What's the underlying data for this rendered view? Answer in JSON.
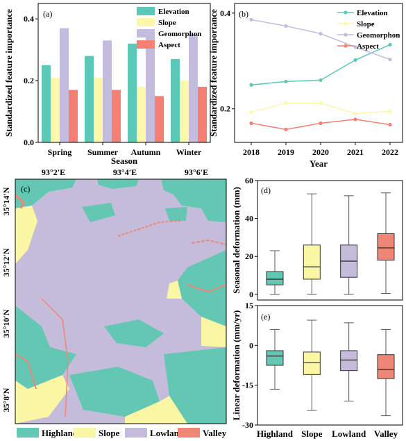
{
  "colors": {
    "elevation": "#5cc9b8",
    "slope": "#fdf7a9",
    "geomorphon": "#c3bcde",
    "aspect": "#f47f72",
    "highland": "#63c7b3",
    "lowland": "#c4bcda",
    "valley": "#ef8575",
    "map_slope": "#faf6a4"
  },
  "chart_data": [
    {
      "panel": "(a)",
      "type": "bar",
      "categories": [
        "Spring",
        "Summer",
        "Autumn",
        "Winter"
      ],
      "series": [
        {
          "name": "Elevation",
          "values": [
            0.25,
            0.28,
            0.32,
            0.27
          ]
        },
        {
          "name": "Slope",
          "values": [
            0.21,
            0.21,
            0.18,
            0.2
          ]
        },
        {
          "name": "Geomorphon",
          "values": [
            0.37,
            0.33,
            0.35,
            0.35
          ]
        },
        {
          "name": "Aspect",
          "values": [
            0.17,
            0.17,
            0.15,
            0.18
          ]
        }
      ],
      "xlabel": "Season",
      "ylabel": "Standardized feature importance",
      "ylim": [
        0,
        0.45
      ],
      "yticks": [
        "0.0",
        "0.2",
        "0.4"
      ],
      "legend": "top-right"
    },
    {
      "panel": "(b)",
      "type": "line",
      "x": [
        "2018",
        "2019",
        "2020",
        "2021",
        "2022"
      ],
      "series": [
        {
          "name": "Elevation",
          "values": [
            0.25,
            0.257,
            0.26,
            0.302,
            0.334
          ]
        },
        {
          "name": "Slope",
          "values": [
            0.193,
            0.212,
            0.212,
            0.19,
            0.195
          ]
        },
        {
          "name": "Geomorphon",
          "values": [
            0.386,
            0.373,
            0.357,
            0.329,
            0.303
          ]
        },
        {
          "name": "Aspect",
          "values": [
            0.17,
            0.157,
            0.17,
            0.178,
            0.167
          ]
        }
      ],
      "xlabel": "Year",
      "ylabel": "Standardized feature importance",
      "ylim": [
        0.13,
        0.42
      ],
      "yticks": [
        "0.2",
        "0.4"
      ],
      "legend": "top-right"
    },
    {
      "panel": "(d)",
      "type": "box",
      "categories": [
        "Highland",
        "Slope",
        "Lowland",
        "Valley"
      ],
      "boxes": [
        {
          "min": 0,
          "q1": 5,
          "median": 8,
          "q3": 12,
          "max": 23
        },
        {
          "min": 0,
          "q1": 8,
          "median": 14.5,
          "q3": 26,
          "max": 53
        },
        {
          "min": 0,
          "q1": 9,
          "median": 17.5,
          "q3": 26,
          "max": 52
        },
        {
          "min": 0.5,
          "q1": 18,
          "median": 24.5,
          "q3": 32,
          "max": 53.5
        }
      ],
      "ylabel": "Seasonal deformation (mm)",
      "ylim": [
        -3,
        60
      ],
      "yticks": [
        "0",
        "20",
        "40",
        "60"
      ]
    },
    {
      "panel": "(e)",
      "type": "box",
      "categories": [
        "Highland",
        "Slope",
        "Lowland",
        "Valley"
      ],
      "boxes": [
        {
          "min": -16.5,
          "q1": -7.5,
          "median": -4,
          "q3": -2,
          "max": 6
        },
        {
          "min": -24.5,
          "q1": -11,
          "median": -6.5,
          "q3": -2.5,
          "max": 9.5
        },
        {
          "min": -21,
          "q1": -9.5,
          "median": -5.5,
          "q3": -2,
          "max": 8.5
        },
        {
          "min": -26.5,
          "q1": -12.5,
          "median": -9,
          "q3": -3.5,
          "max": 6
        }
      ],
      "ylabel": "Linear deformation (mm/yr)",
      "ylim": [
        -30,
        15
      ],
      "yticks": [
        "15",
        "0",
        "-15",
        "-30"
      ]
    }
  ],
  "map": {
    "panel": "(c)",
    "lon_labels": [
      "93°2′E",
      "93°4′E",
      "93°6′E"
    ],
    "lat_labels": [
      "35°14′N",
      "35°12′N",
      "35°10′N",
      "35°8′N"
    ],
    "legend": [
      "Highland",
      "Slope",
      "Lowland",
      "Valley"
    ]
  }
}
